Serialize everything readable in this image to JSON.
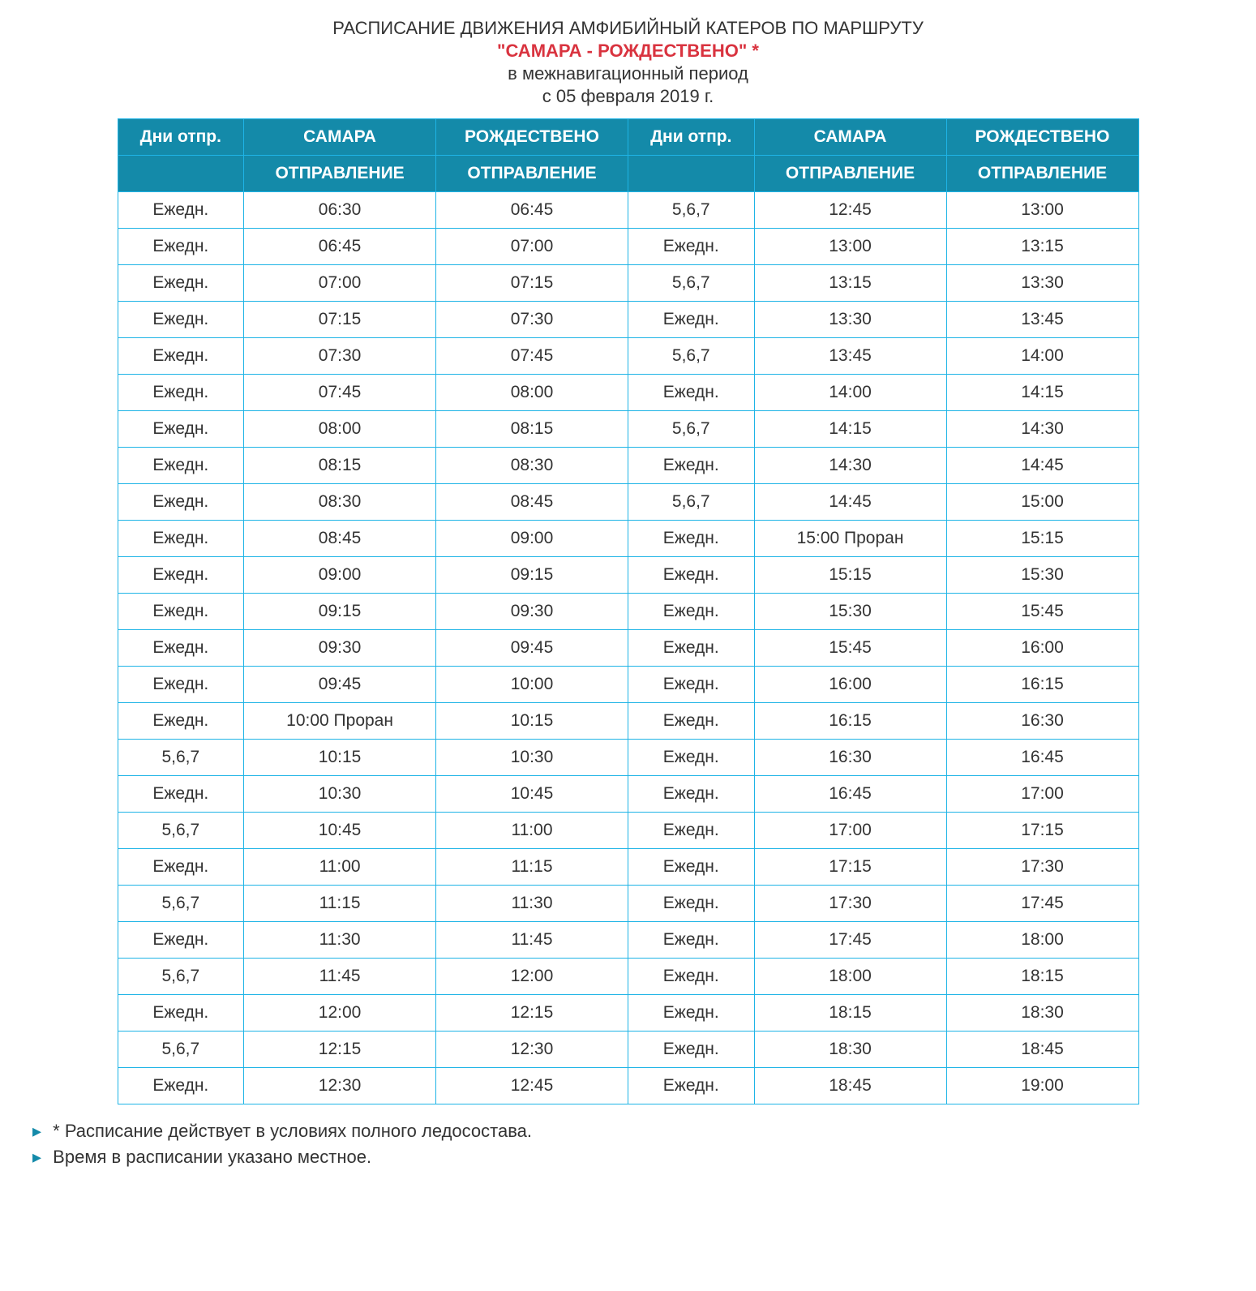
{
  "header": {
    "title": "РАСПИСАНИЕ ДВИЖЕНИЯ АМФИБИЙНЫЙ КАТЕРОВ ПО МАРШРУТУ",
    "route": "\"САМАРА - РОЖДЕСТВЕНО\" *",
    "period": "в межнавигационный период",
    "from_date": "с 05 февраля 2019 г."
  },
  "table": {
    "header_bg": "#148aa9",
    "header_fg": "#ffffff",
    "border_color": "#1eb4e6",
    "cell_bg": "#ffffff",
    "cell_fg": "#333333",
    "columns_row1": [
      "Дни отпр.",
      "САМАРА",
      "РОЖДЕСТВЕНО",
      "Дни отпр.",
      "САМАРА",
      "РОЖДЕСТВЕНО"
    ],
    "columns_row2": [
      "",
      "ОТПРАВЛЕНИЕ",
      "ОТПРАВЛЕНИЕ",
      "",
      "ОТПРАВЛЕНИЕ",
      "ОТПРАВЛЕНИЕ"
    ],
    "rows": [
      [
        "Ежедн.",
        "06:30",
        "06:45",
        "5,6,7",
        "12:45",
        "13:00"
      ],
      [
        "Ежедн.",
        "06:45",
        "07:00",
        "Ежедн.",
        "13:00",
        "13:15"
      ],
      [
        "Ежедн.",
        "07:00",
        "07:15",
        "5,6,7",
        "13:15",
        "13:30"
      ],
      [
        "Ежедн.",
        "07:15",
        "07:30",
        "Ежедн.",
        "13:30",
        "13:45"
      ],
      [
        "Ежедн.",
        "07:30",
        "07:45",
        "5,6,7",
        "13:45",
        "14:00"
      ],
      [
        "Ежедн.",
        "07:45",
        "08:00",
        "Ежедн.",
        "14:00",
        "14:15"
      ],
      [
        "Ежедн.",
        "08:00",
        "08:15",
        "5,6,7",
        "14:15",
        "14:30"
      ],
      [
        "Ежедн.",
        "08:15",
        "08:30",
        "Ежедн.",
        "14:30",
        "14:45"
      ],
      [
        "Ежедн.",
        "08:30",
        "08:45",
        "5,6,7",
        "14:45",
        "15:00"
      ],
      [
        "Ежедн.",
        "08:45",
        "09:00",
        "Ежедн.",
        "15:00 Проран",
        "15:15"
      ],
      [
        "Ежедн.",
        "09:00",
        "09:15",
        "Ежедн.",
        "15:15",
        "15:30"
      ],
      [
        "Ежедн.",
        "09:15",
        "09:30",
        "Ежедн.",
        "15:30",
        "15:45"
      ],
      [
        "Ежедн.",
        "09:30",
        "09:45",
        "Ежедн.",
        "15:45",
        "16:00"
      ],
      [
        "Ежедн.",
        "09:45",
        "10:00",
        "Ежедн.",
        "16:00",
        "16:15"
      ],
      [
        "Ежедн.",
        "10:00 Проран",
        "10:15",
        "Ежедн.",
        "16:15",
        "16:30"
      ],
      [
        "5,6,7",
        "10:15",
        "10:30",
        "Ежедн.",
        "16:30",
        "16:45"
      ],
      [
        "Ежедн.",
        "10:30",
        "10:45",
        "Ежедн.",
        "16:45",
        "17:00"
      ],
      [
        "5,6,7",
        "10:45",
        "11:00",
        "Ежедн.",
        "17:00",
        "17:15"
      ],
      [
        "Ежедн.",
        "11:00",
        "11:15",
        "Ежедн.",
        "17:15",
        "17:30"
      ],
      [
        "5,6,7",
        "11:15",
        "11:30",
        "Ежедн.",
        "17:30",
        "17:45"
      ],
      [
        "Ежедн.",
        "11:30",
        "11:45",
        "Ежедн.",
        "17:45",
        "18:00"
      ],
      [
        "5,6,7",
        "11:45",
        "12:00",
        "Ежедн.",
        "18:00",
        "18:15"
      ],
      [
        "Ежедн.",
        "12:00",
        "12:15",
        "Ежедн.",
        "18:15",
        "18:30"
      ],
      [
        "5,6,7",
        "12:15",
        "12:30",
        "Ежедн.",
        "18:30",
        "18:45"
      ],
      [
        "Ежедн.",
        "12:30",
        "12:45",
        "Ежедн.",
        "18:45",
        "19:00"
      ]
    ]
  },
  "footnotes": [
    "* Расписание действует в условиях полного ледосостава.",
    "Время в расписании указано местное."
  ]
}
